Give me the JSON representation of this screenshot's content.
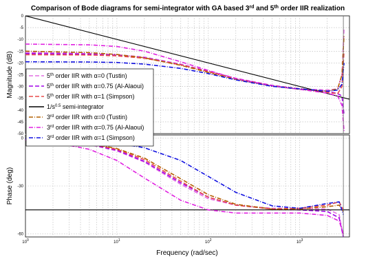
{
  "chart_data": {
    "type": "line",
    "title": {
      "prefix": "Comparison of Bode diagrams for semi-integrator with GA based 3",
      "sup1": "rd",
      "mid": " and 5",
      "sup2": "th",
      "suffix": " order IIR realization"
    },
    "xlabel": "Frequency  (rad/sec)",
    "x_scale": "log",
    "xlim": [
      1,
      3500
    ],
    "x_ticks": [
      {
        "value": 1,
        "base": "10",
        "exp": "0"
      },
      {
        "value": 10,
        "base": "10",
        "exp": "1"
      },
      {
        "value": 100,
        "base": "10",
        "exp": "2"
      },
      {
        "value": 1000,
        "base": "10",
        "exp": "3"
      }
    ],
    "grid": true,
    "legend_position": "lower-left of magnitude panel",
    "panels": [
      {
        "name": "magnitude",
        "ylabel": "Magnitude (dB)",
        "ylim": [
          -50,
          0
        ],
        "y_ticks": [
          "0",
          "-5",
          "-10",
          "-15",
          "-20",
          "-25",
          "-30",
          "-35",
          "-40",
          "-45",
          "-50"
        ],
        "series": [
          {
            "name": "5th Tustin",
            "color": "#e26ee2",
            "dash": "6 3",
            "x": [
              1,
              5,
              10,
              20,
              50,
              100,
              200,
              500,
              1000,
              2000,
              2600,
              2900,
              3050
            ],
            "y": [
              -15.5,
              -16,
              -16.5,
              -17.5,
              -20.5,
              -23.5,
              -26.5,
              -29.5,
              -31,
              -31.5,
              -31,
              -25,
              -5
            ]
          },
          {
            "name": "5th Al-Alaoui",
            "color": "#a000e8",
            "dash": "6 3",
            "x": [
              1,
              5,
              10,
              20,
              50,
              100,
              200,
              500,
              1000,
              2000,
              2600,
              2900,
              3050
            ],
            "y": [
              -16,
              -16.3,
              -16.8,
              -17.8,
              -20.7,
              -23.6,
              -26.6,
              -29.6,
              -31,
              -32,
              -33,
              -34,
              -42
            ]
          },
          {
            "name": "5th Simpson",
            "color": "#e84a4a",
            "dash": "6 3",
            "x": [
              1,
              5,
              10,
              20,
              50,
              100,
              200,
              500,
              1000,
              2000,
              2600,
              2900,
              3050
            ],
            "y": [
              -16.5,
              -16.6,
              -17,
              -18,
              -20.8,
              -23.7,
              -26.7,
              -29.7,
              -31,
              -32.5,
              -33,
              -30,
              -15
            ]
          },
          {
            "name": "semi-integrator",
            "color": "#000000",
            "dash": "",
            "x": [
              1,
              3500
            ],
            "y": [
              0,
              -35.4
            ]
          },
          {
            "name": "3rd Tustin",
            "color": "#b46000",
            "dash": "6 2 1 2",
            "x": [
              1,
              5,
              10,
              20,
              50,
              100,
              200,
              500,
              1000,
              2000,
              2600,
              2900,
              3050
            ],
            "y": [
              -15,
              -15.6,
              -16.4,
              -17.8,
              -21,
              -24,
              -27,
              -29.8,
              -31.2,
              -32,
              -31,
              -25,
              -8
            ]
          },
          {
            "name": "3rd Al-Alaoui",
            "color": "#e020e0",
            "dash": "6 2 1 2",
            "x": [
              1,
              5,
              10,
              20,
              50,
              100,
              200,
              500,
              1000,
              2000,
              2600,
              2900,
              3050
            ],
            "y": [
              -12,
              -12.3,
              -13,
              -15,
              -19.5,
              -23.2,
              -26.6,
              -29.7,
              -31.2,
              -32.8,
              -34,
              -38,
              -49
            ]
          },
          {
            "name": "3rd Simpson",
            "color": "#1010e0",
            "dash": "6 2 1 2",
            "x": [
              1,
              5,
              10,
              20,
              50,
              100,
              200,
              500,
              1000,
              2000,
              2600,
              2900,
              3050
            ],
            "y": [
              -19.5,
              -19.6,
              -19.8,
              -20.5,
              -22.3,
              -24.5,
              -27.2,
              -29.9,
              -31,
              -32,
              -31.5,
              -29,
              -20
            ]
          }
        ]
      },
      {
        "name": "phase",
        "ylabel": "Phase (deg)",
        "ylim": [
          -62,
          2
        ],
        "y_ticks": [
          "0",
          "-30",
          "-60"
        ],
        "series": [
          {
            "name": "5th Tustin",
            "color": "#e26ee2",
            "dash": "6 3",
            "x": [
              1,
              2,
              5,
              10,
              20,
              50,
              100,
              200,
              500,
              1000,
              2000,
              2700,
              3000
            ],
            "y": [
              -0.5,
              -1.5,
              -4,
              -8,
              -15,
              -29,
              -38,
              -42,
              -44,
              -44,
              -44.5,
              -48,
              -62
            ]
          },
          {
            "name": "5th Al-Alaoui",
            "color": "#a000e8",
            "dash": "6 3",
            "x": [
              1,
              2,
              5,
              10,
              20,
              50,
              100,
              200,
              500,
              1000,
              2000,
              2700,
              3000
            ],
            "y": [
              -0.5,
              -1.5,
              -3.8,
              -7.5,
              -14.5,
              -28,
              -37,
              -42,
              -44.5,
              -45,
              -46,
              -50,
              -62
            ]
          },
          {
            "name": "5th Simpson",
            "color": "#e84a4a",
            "dash": "6 3",
            "x": [
              1,
              2,
              5,
              10,
              20,
              50,
              100,
              200,
              500,
              1000,
              2000,
              2700,
              3000
            ],
            "y": [
              -0.5,
              -1.3,
              -3.5,
              -7,
              -13.5,
              -27,
              -37,
              -42,
              -44.5,
              -44,
              -42,
              -40,
              -45
            ]
          },
          {
            "name": "semi-integrator",
            "color": "#000000",
            "dash": "",
            "x": [
              1,
              3500
            ],
            "y": [
              -45,
              -45
            ]
          },
          {
            "name": "3rd Tustin",
            "color": "#b46000",
            "dash": "6 2 1 2",
            "x": [
              1,
              2,
              5,
              10,
              20,
              50,
              100,
              200,
              500,
              1000,
              2000,
              2700,
              3000
            ],
            "y": [
              -0.5,
              -1.2,
              -3.2,
              -6.5,
              -12.5,
              -25.5,
              -35.5,
              -41.5,
              -44.5,
              -44.5,
              -43,
              -42,
              -46
            ]
          },
          {
            "name": "3rd Al-Alaoui",
            "color": "#e020e0",
            "dash": "6 2 1 2",
            "x": [
              1,
              2,
              5,
              10,
              20,
              50,
              100,
              200,
              500,
              1000,
              2000,
              2700,
              3000
            ],
            "y": [
              -1,
              -2.5,
              -7,
              -14,
              -25,
              -39,
              -45,
              -47,
              -47,
              -47,
              -48.5,
              -52,
              -60
            ]
          },
          {
            "name": "3rd Simpson",
            "color": "#1010e0",
            "dash": "6 2 1 2",
            "x": [
              1,
              2,
              5,
              10,
              20,
              50,
              100,
              200,
              500,
              1000,
              2000,
              2700,
              3000
            ],
            "y": [
              -0.3,
              -0.5,
              -1.5,
              -3,
              -6,
              -14,
              -24,
              -34,
              -42.5,
              -44,
              -41,
              -40,
              -48
            ]
          }
        ]
      }
    ],
    "legend": [
      {
        "pre": "5",
        "sup": "th",
        "post": " order IIR with α=0 (Tustin)",
        "color": "#e26ee2",
        "dash": "6 3"
      },
      {
        "pre": "5",
        "sup": "th",
        "post": " order IIR with α=0.75 (Al-Alaoui)",
        "color": "#a000e8",
        "dash": "6 3"
      },
      {
        "pre": "5",
        "sup": "th",
        "post": " order IIR with α=1 (Simpson)",
        "color": "#e84a4a",
        "dash": "6 3"
      },
      {
        "pre": "1/s",
        "sup": "0.5",
        "post": "  semi-integrator",
        "color": "#000000",
        "dash": ""
      },
      {
        "pre": "3",
        "sup": "rd",
        "post": " order IIR with α=0 (Tustin)",
        "color": "#b46000",
        "dash": "6 2 1 2"
      },
      {
        "pre": "3",
        "sup": "rd",
        "post": " order IIR with α=0.75 (Al-Alaoui)",
        "color": "#e020e0",
        "dash": "6 2 1 2"
      },
      {
        "pre": "3",
        "sup": "rd",
        "post": " order IIR with α=1 (Simpson)",
        "color": "#1010e0",
        "dash": "6 2 1 2"
      }
    ]
  }
}
